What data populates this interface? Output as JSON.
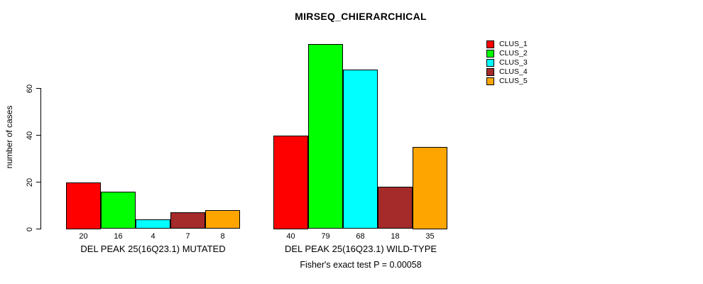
{
  "title": "MIRSEQ_CHIERARCHICAL",
  "chart_data": {
    "type": "bar",
    "title": "MIRSEQ_CHIERARCHICAL",
    "ylabel": "number of cases",
    "xlabel": "",
    "yticks": [
      0,
      20,
      40,
      60
    ],
    "ylim": [
      0,
      80
    ],
    "grid": false,
    "legend_position": "top-right",
    "bar_value_labels_shown": true,
    "series": [
      {
        "name": "CLUS_1",
        "color": "#FF0000"
      },
      {
        "name": "CLUS_2",
        "color": "#00FF00"
      },
      {
        "name": "CLUS_3",
        "color": "#00FFFF"
      },
      {
        "name": "CLUS_4",
        "color": "#A52A2A"
      },
      {
        "name": "CLUS_5",
        "color": "#FFA500"
      }
    ],
    "groups": [
      {
        "label": "DEL PEAK 25(16Q23.1) MUTATED",
        "values": [
          20,
          16,
          4,
          7,
          8
        ]
      },
      {
        "label": "DEL PEAK 25(16Q23.1) WILD-TYPE",
        "values": [
          40,
          79,
          68,
          18,
          35
        ]
      }
    ],
    "annotation": "Fisher's exact test P = 0.00058"
  },
  "colors": {
    "background": "#FFFFFF",
    "axis": "#000000",
    "text": "#000000"
  }
}
